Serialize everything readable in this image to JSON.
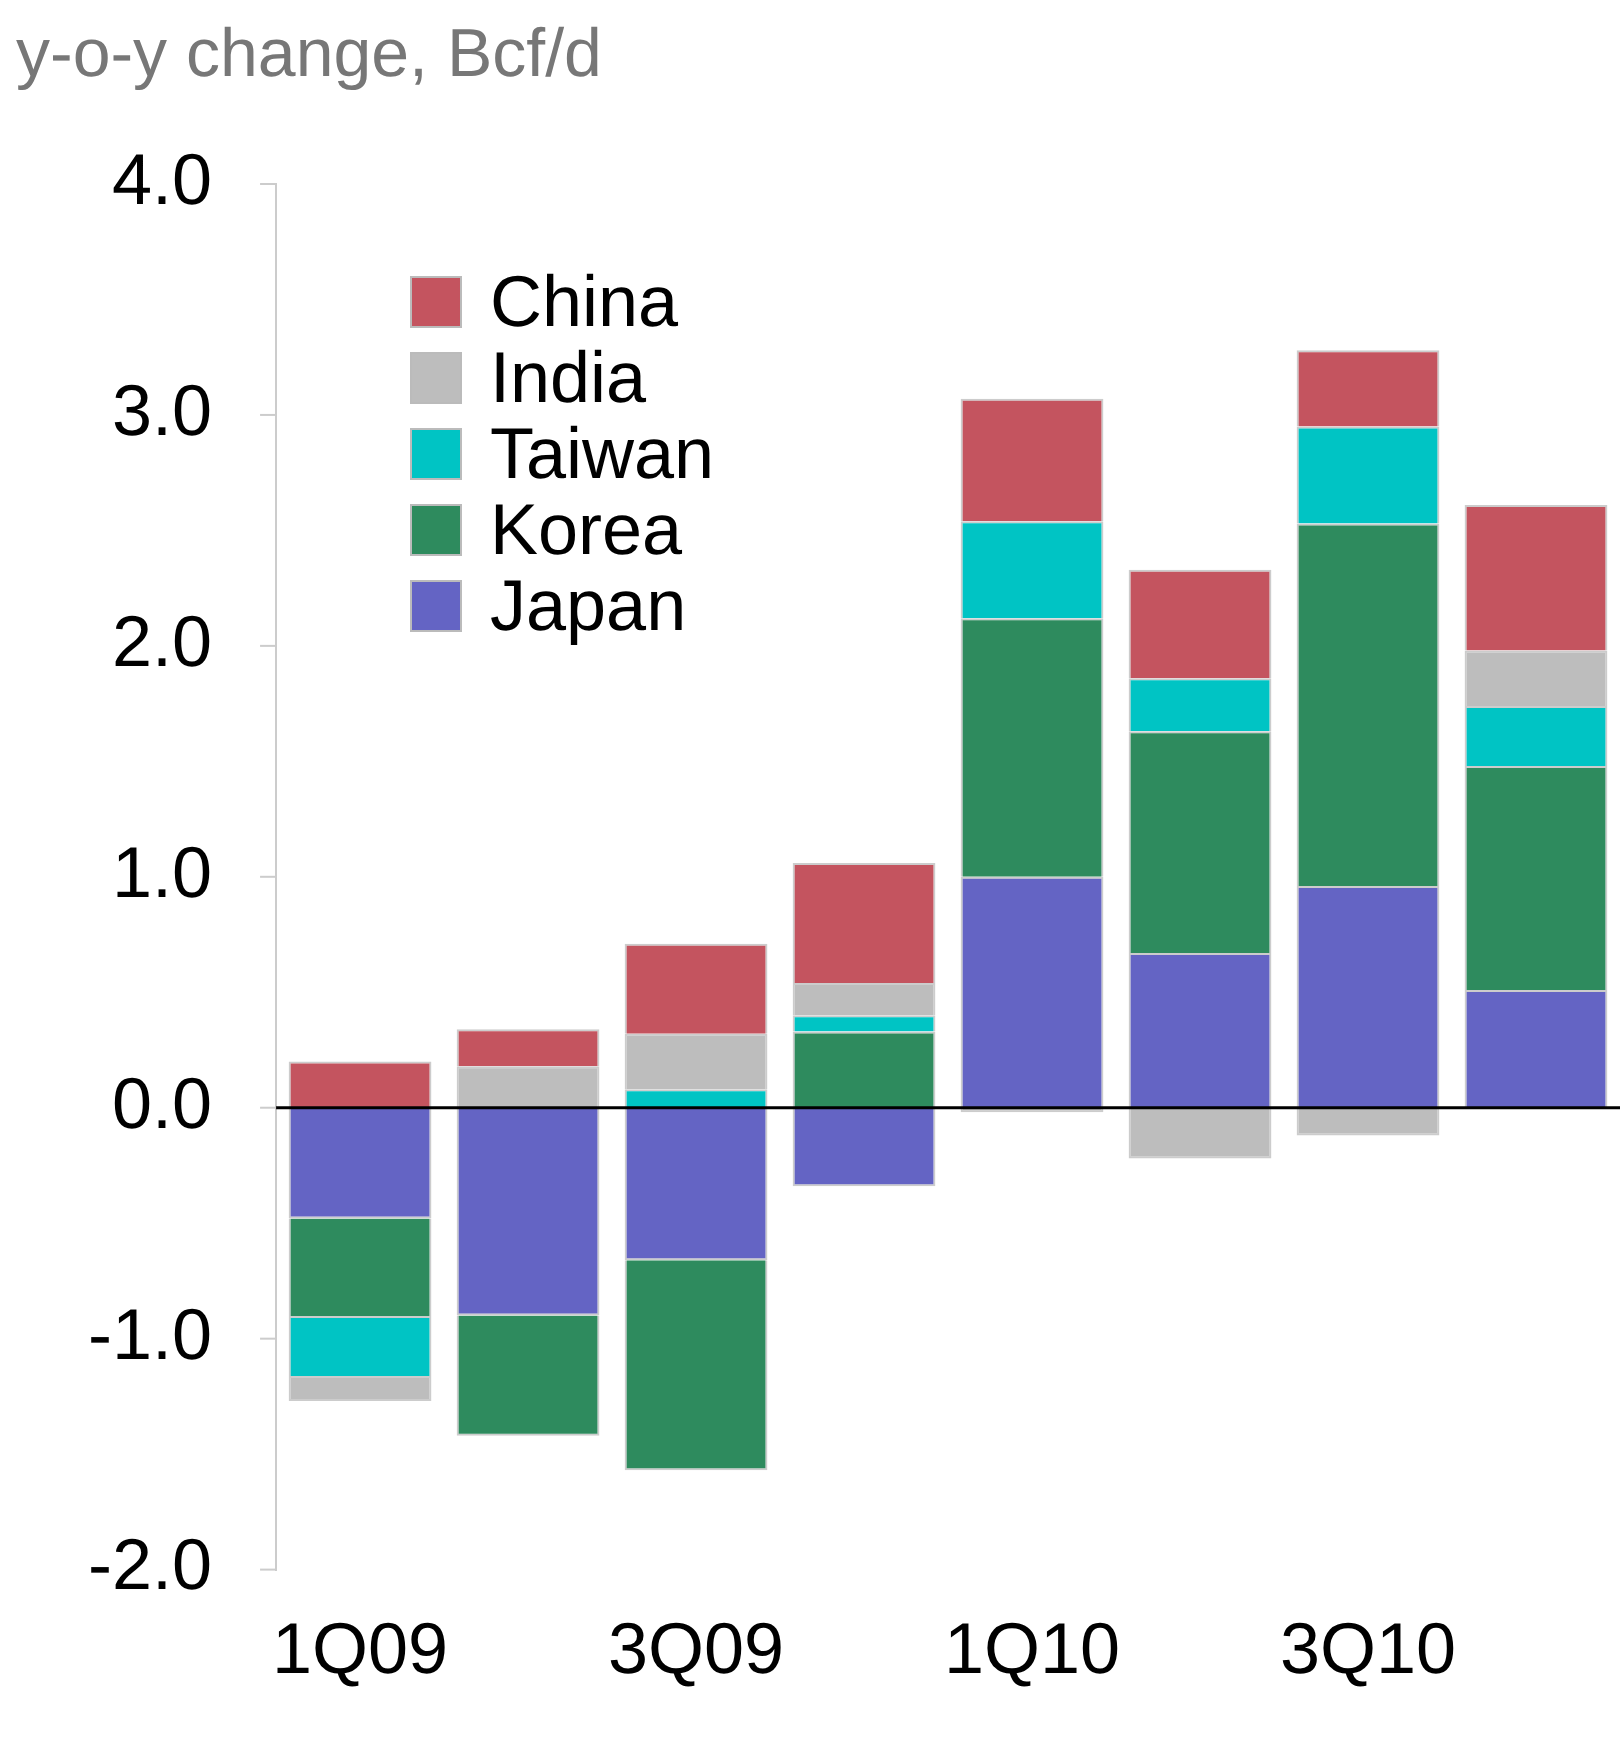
{
  "chart_data": {
    "type": "bar",
    "ylabel": "y-o-y change, Bcf/d",
    "stacked": true,
    "grid": false,
    "legend": "top left",
    "categories": [
      "1Q09",
      null,
      "3Q09",
      null,
      "1Q10",
      null,
      "3Q10",
      null
    ],
    "series": [
      {
        "name": "Japan",
        "color": "#6464c4",
        "values": [
          -0.48,
          -0.9,
          -0.66,
          -0.34,
          1.0,
          0.67,
          0.96,
          0.51
        ]
      },
      {
        "name": "Korea",
        "color": "#2e8b5e",
        "values": [
          -0.43,
          -0.52,
          -0.91,
          0.33,
          1.12,
          0.96,
          1.57,
          0.97
        ]
      },
      {
        "name": "Taiwan",
        "color": "#00c4c4",
        "values": [
          -0.26,
          0,
          0.08,
          0.07,
          0.42,
          0.23,
          0.42,
          0.26
        ]
      },
      {
        "name": "India",
        "color": "#bdbdbd",
        "values": [
          -0.1,
          0.18,
          0.24,
          0.14,
          -0.02,
          -0.22,
          -0.12,
          0.24
        ]
      },
      {
        "name": "China",
        "color": "#c4545f",
        "values": [
          0.2,
          0.16,
          0.39,
          0.52,
          0.53,
          0.47,
          0.33,
          0.63
        ]
      }
    ],
    "ylim": [
      -2,
      4
    ],
    "ref_lines": [
      {
        "axis": "y",
        "value": 0,
        "color": "#000000"
      }
    ],
    "yticks": [
      {
        "value": -2,
        "label": "-2.0"
      },
      {
        "value": -1,
        "label": "-1.0"
      },
      {
        "value": 0,
        "label": "0.0"
      },
      {
        "value": 1,
        "label": "1.0"
      },
      {
        "value": 2,
        "label": "2.0"
      },
      {
        "value": 3,
        "label": "3.0"
      },
      {
        "value": 4,
        "label": "4.0"
      }
    ]
  }
}
